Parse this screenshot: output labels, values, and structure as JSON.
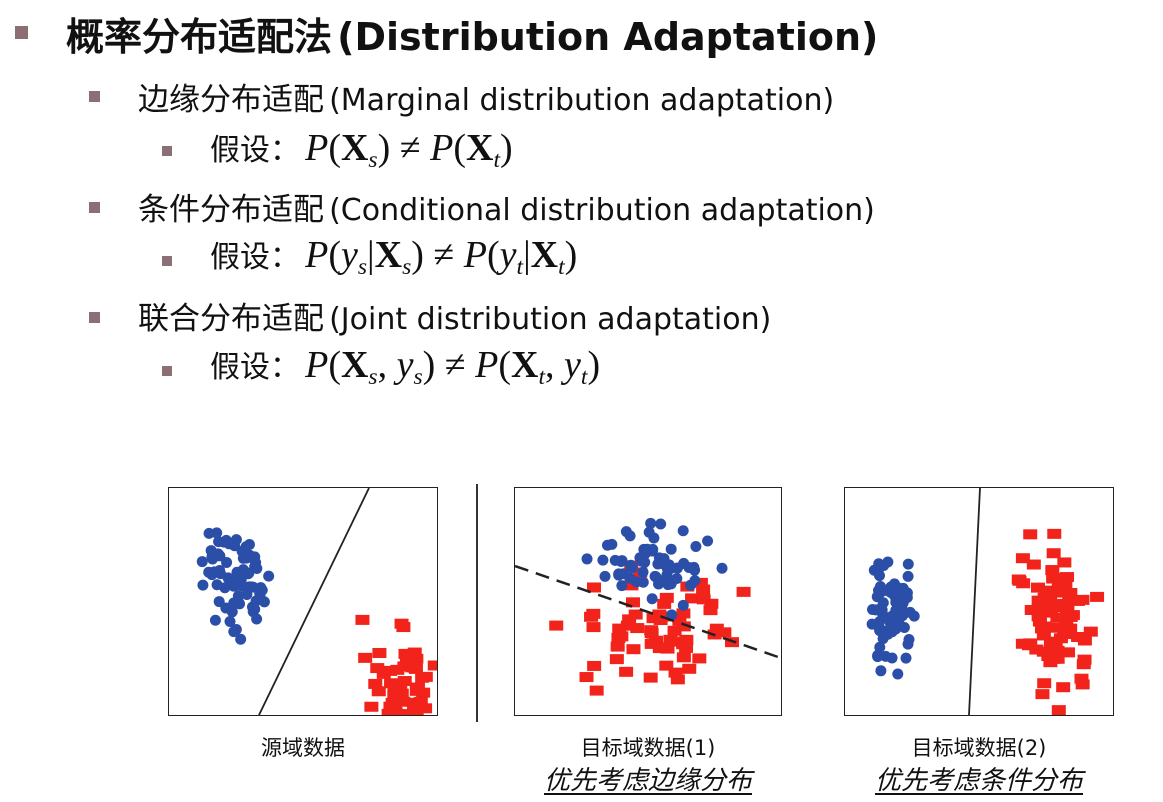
{
  "title": {
    "zh": "概率分布适配法",
    "en": "(Distribution Adaptation)"
  },
  "items": [
    {
      "zh": "边缘分布适配",
      "en": "(Marginal distribution adaptation)",
      "assumption_label": "假设：",
      "formula": "P(X_s) ≠ P(X_t)"
    },
    {
      "zh": "条件分布适配",
      "en": "(Conditional distribution adaptation)",
      "assumption_label": "假设：",
      "formula": "P(y_s|X_s) ≠ P(y_t|X_t)"
    },
    {
      "zh": "联合分布适配",
      "en": "(Joint distribution adaptation)",
      "assumption_label": "假设：",
      "formula": "P(X_s, y_s) ≠ P(X_t, y_t)"
    }
  ],
  "figures": [
    {
      "caption": "源域数据",
      "subcaption": ""
    },
    {
      "caption": "目标域数据(1)",
      "subcaption": "优先考虑边缘分布"
    },
    {
      "caption": "目标域数据(2)",
      "subcaption": "优先考虑条件分布"
    }
  ],
  "colors": {
    "bullet": "#8b6f74",
    "blue_class": "#2b4fa8",
    "red_class": "#f2231a"
  }
}
